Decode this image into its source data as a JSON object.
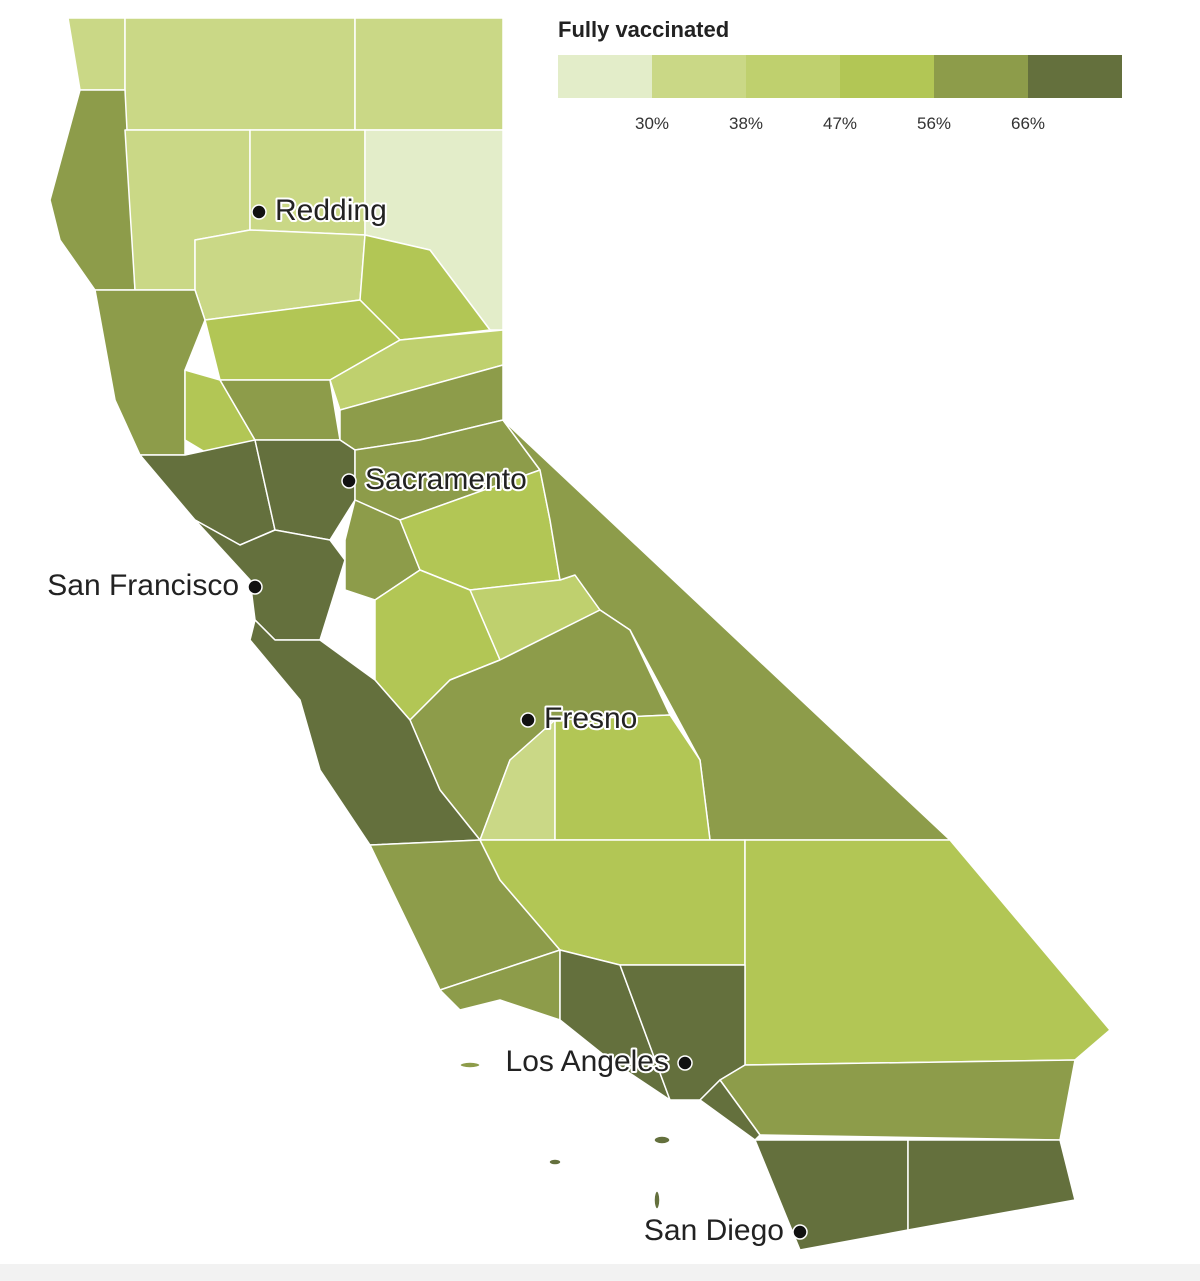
{
  "legend": {
    "title": "Fully vaccinated",
    "colors": [
      "#e3edc9",
      "#cad886",
      "#bfd06e",
      "#b2c655",
      "#8d9c4a",
      "#64703d"
    ],
    "ticks": [
      {
        "value": 30,
        "label": "30%"
      },
      {
        "value": 38,
        "label": "38%"
      },
      {
        "value": 47,
        "label": "47%"
      },
      {
        "value": 56,
        "label": "56%"
      },
      {
        "value": 66,
        "label": "66%"
      }
    ]
  },
  "cities": [
    {
      "name": "Redding"
    },
    {
      "name": "Sacramento"
    },
    {
      "name": "San Francisco"
    },
    {
      "name": "Fresno"
    },
    {
      "name": "Los Angeles"
    },
    {
      "name": "San Diego"
    }
  ]
}
